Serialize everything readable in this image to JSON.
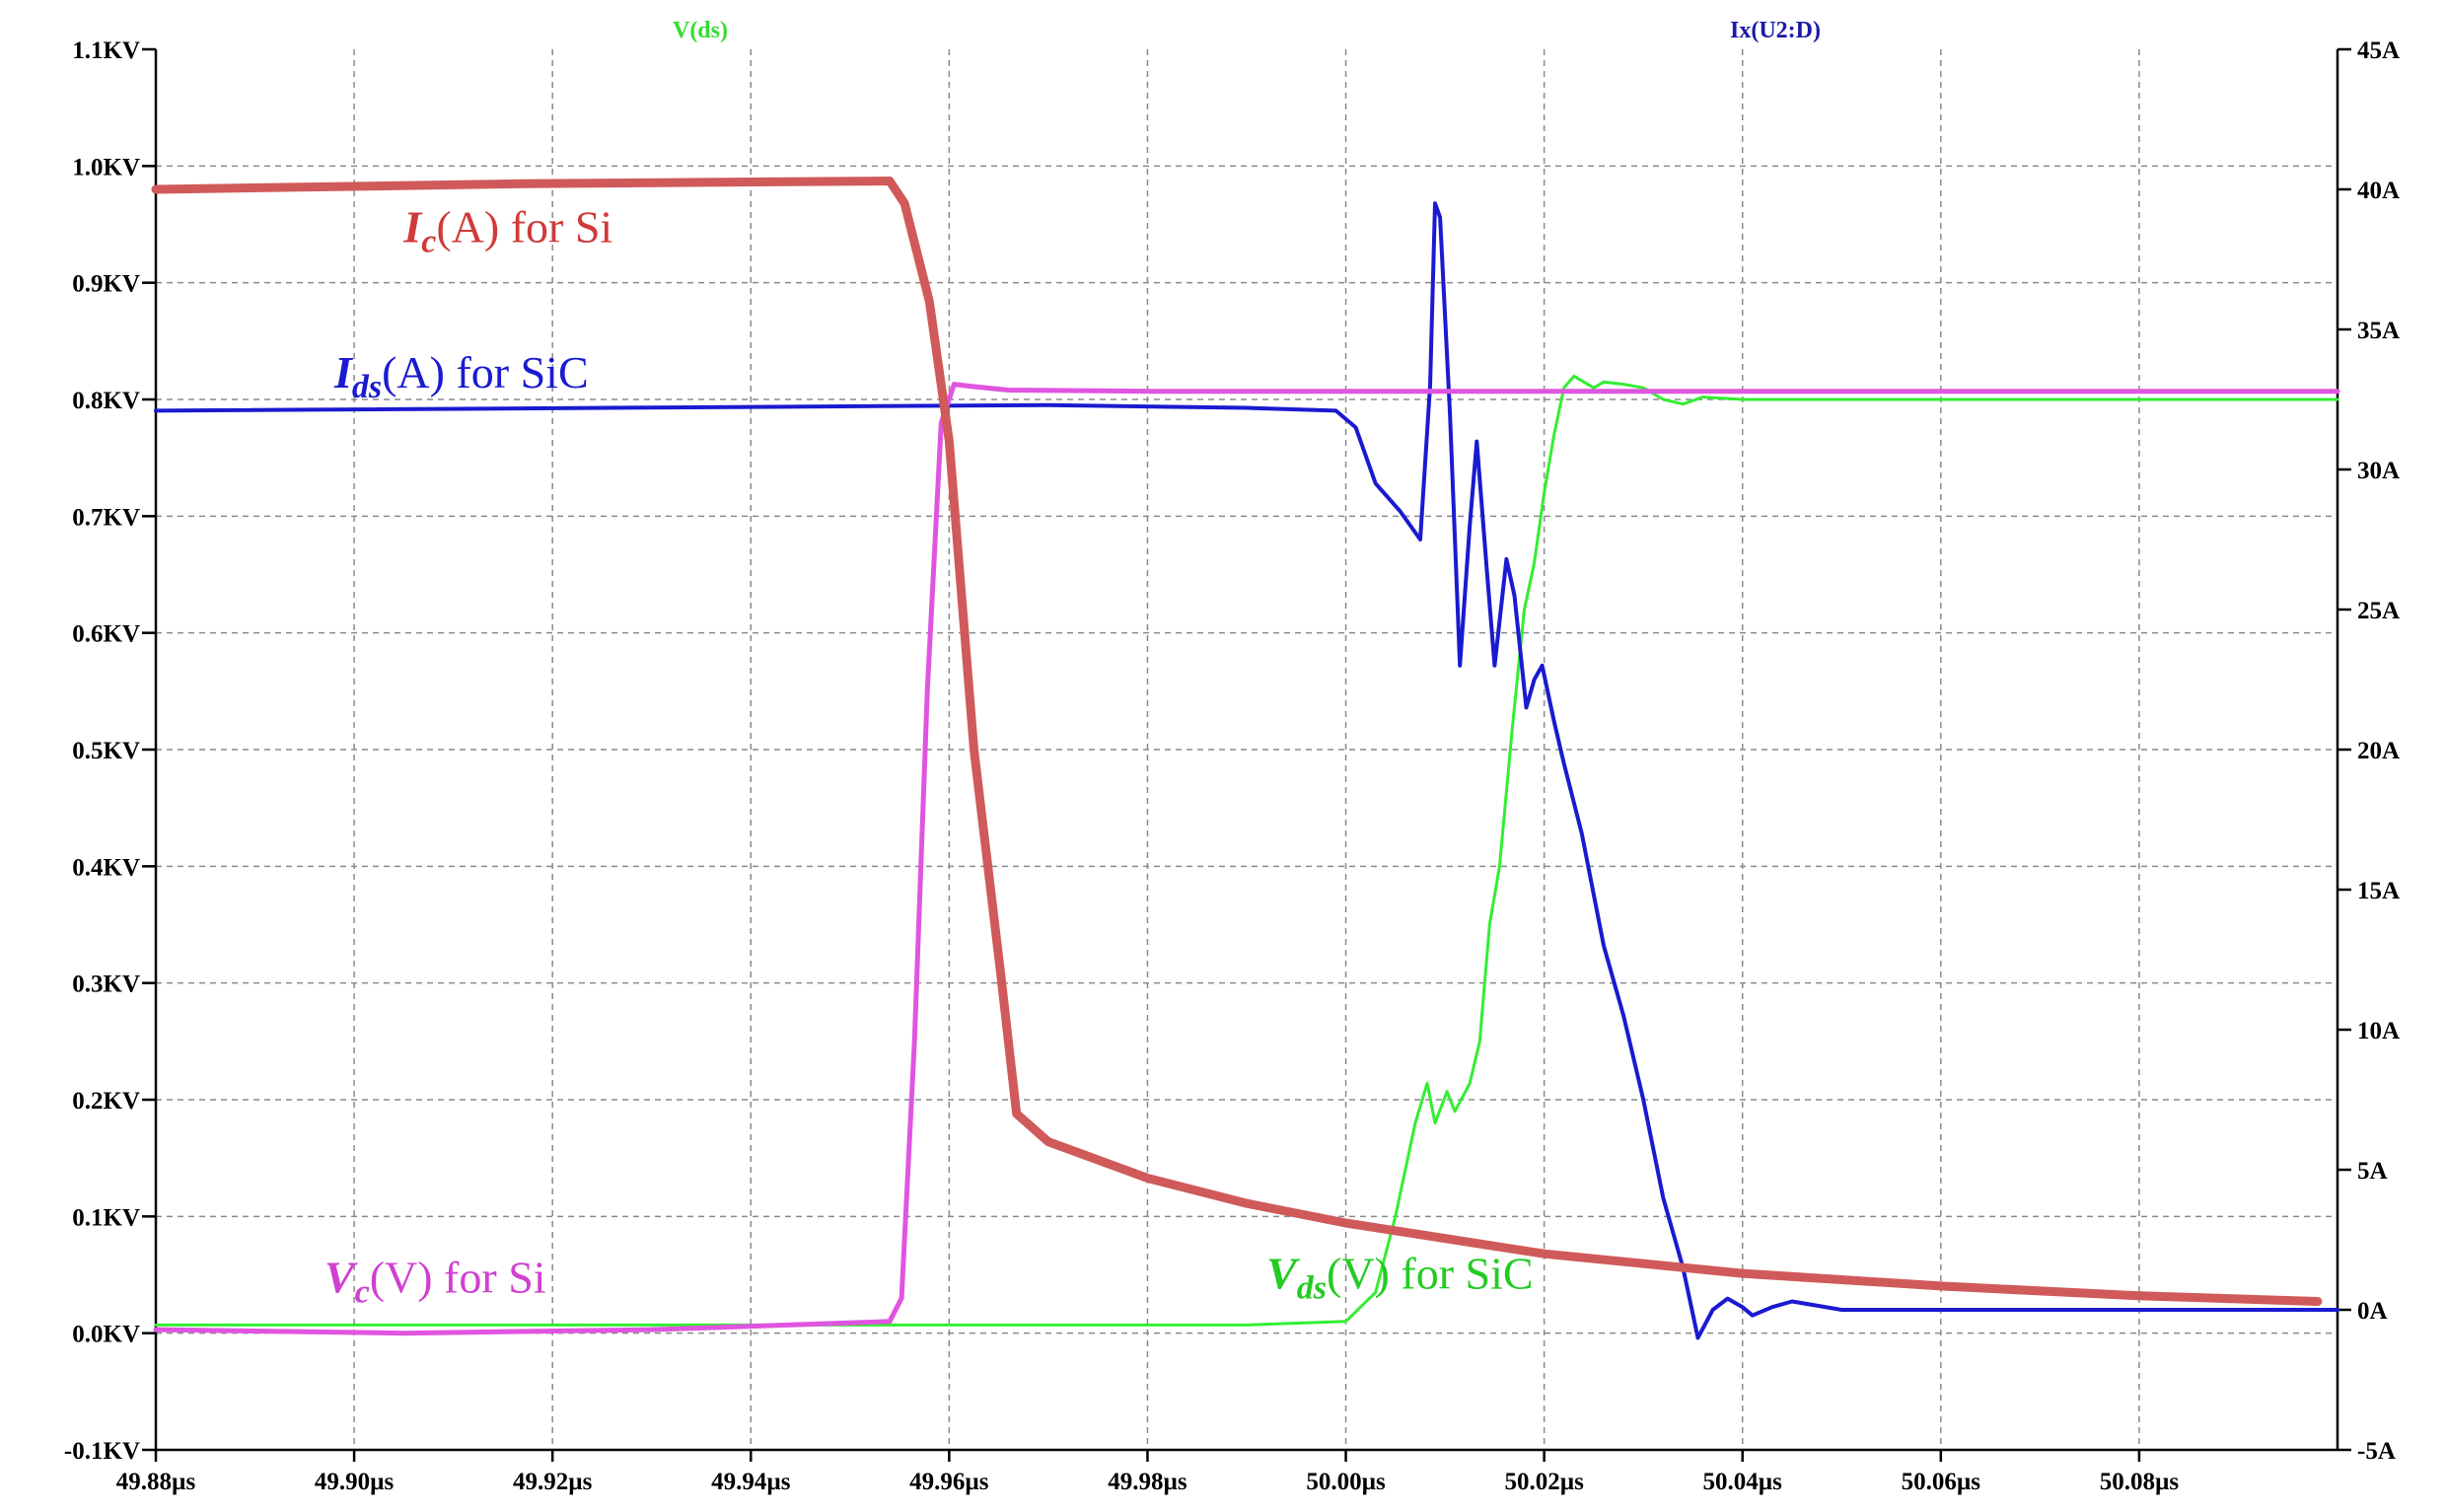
{
  "chart_data": {
    "type": "line",
    "title": "",
    "trace_headers": {
      "left": {
        "label": "V(ds)",
        "color": "#33dd33"
      },
      "right": {
        "label": "Ix(U2:D)",
        "color": "#1a1aa8"
      }
    },
    "x_axis": {
      "unit": "µs",
      "range": [
        49.88,
        50.1
      ],
      "ticks": [
        49.88,
        49.9,
        49.92,
        49.94,
        49.96,
        49.98,
        50.0,
        50.02,
        50.04,
        50.06,
        50.08
      ],
      "tick_labels": [
        "49.88µs",
        "49.90µs",
        "49.92µs",
        "49.94µs",
        "49.96µs",
        "49.98µs",
        "50.00µs",
        "50.02µs",
        "50.04µs",
        "50.06µs",
        "50.08µs"
      ]
    },
    "y_left": {
      "unit": "KV",
      "range": [
        -0.1,
        1.1
      ],
      "ticks": [
        -0.1,
        0.0,
        0.1,
        0.2,
        0.3,
        0.4,
        0.5,
        0.6,
        0.7,
        0.8,
        0.9,
        1.0,
        1.1
      ],
      "tick_labels": [
        "-0.1KV",
        "0.0KV",
        "0.1KV",
        "0.2KV",
        "0.3KV",
        "0.4KV",
        "0.5KV",
        "0.6KV",
        "0.7KV",
        "0.8KV",
        "0.9KV",
        "1.0KV",
        "1.1KV"
      ]
    },
    "y_right": {
      "unit": "A",
      "range": [
        -5,
        45
      ],
      "ticks": [
        -5,
        0,
        5,
        10,
        15,
        20,
        25,
        30,
        35,
        40,
        45
      ],
      "tick_labels": [
        "-5A",
        "0A",
        "5A",
        "10A",
        "15A",
        "20A",
        "25A",
        "30A",
        "35A",
        "40A",
        "45A"
      ]
    },
    "grid": true,
    "series": [
      {
        "id": "vds-sic",
        "axis": "left",
        "color": "#33ee33",
        "width": 3,
        "points": [
          [
            49.88,
            0.007
          ],
          [
            49.99,
            0.007
          ],
          [
            50.0,
            0.01
          ],
          [
            50.003,
            0.035
          ],
          [
            50.005,
            0.1
          ],
          [
            50.007,
            0.18
          ],
          [
            50.0082,
            0.214
          ],
          [
            50.009,
            0.18
          ],
          [
            50.0102,
            0.207
          ],
          [
            50.011,
            0.19
          ],
          [
            50.0125,
            0.214
          ],
          [
            50.0135,
            0.25
          ],
          [
            50.0145,
            0.35
          ],
          [
            50.0155,
            0.4
          ],
          [
            50.0168,
            0.52
          ],
          [
            50.018,
            0.62
          ],
          [
            50.019,
            0.66
          ],
          [
            50.02,
            0.72
          ],
          [
            50.021,
            0.77
          ],
          [
            50.022,
            0.81
          ],
          [
            50.023,
            0.82
          ],
          [
            50.024,
            0.815
          ],
          [
            50.025,
            0.81
          ],
          [
            50.026,
            0.815
          ],
          [
            50.028,
            0.813
          ],
          [
            50.03,
            0.81
          ],
          [
            50.032,
            0.8
          ],
          [
            50.034,
            0.796
          ],
          [
            50.036,
            0.802
          ],
          [
            50.04,
            0.8
          ],
          [
            50.1,
            0.8
          ]
        ]
      },
      {
        "id": "ids-sic",
        "axis": "right",
        "color": "#1a1ad0",
        "width": 4,
        "points": [
          [
            49.88,
            32.1
          ],
          [
            49.97,
            32.3
          ],
          [
            49.99,
            32.2
          ],
          [
            49.999,
            32.1
          ],
          [
            50.001,
            31.5
          ],
          [
            50.003,
            29.5
          ],
          [
            50.0055,
            28.5
          ],
          [
            50.0075,
            27.5
          ],
          [
            50.0085,
            33.0
          ],
          [
            50.009,
            39.5
          ],
          [
            50.0095,
            39.0
          ],
          [
            50.0105,
            32.0
          ],
          [
            50.0115,
            23.0
          ],
          [
            50.0125,
            28.0
          ],
          [
            50.0132,
            31.0
          ],
          [
            50.0142,
            26.5
          ],
          [
            50.015,
            23.0
          ],
          [
            50.0162,
            26.8
          ],
          [
            50.017,
            25.5
          ],
          [
            50.0182,
            21.5
          ],
          [
            50.019,
            22.5
          ],
          [
            50.0198,
            23.0
          ],
          [
            50.021,
            21.0
          ],
          [
            50.022,
            19.5
          ],
          [
            50.0238,
            17.0
          ],
          [
            50.026,
            13.0
          ],
          [
            50.028,
            10.5
          ],
          [
            50.03,
            7.5
          ],
          [
            50.032,
            4.0
          ],
          [
            50.034,
            1.5
          ],
          [
            50.0355,
            -1.0
          ],
          [
            50.037,
            0.0
          ],
          [
            50.0385,
            0.4
          ],
          [
            50.04,
            0.1
          ],
          [
            50.041,
            -0.2
          ],
          [
            50.043,
            0.1
          ],
          [
            50.045,
            0.3
          ],
          [
            50.05,
            0.0
          ],
          [
            50.1,
            0.0
          ]
        ]
      },
      {
        "id": "vc-si",
        "axis": "left",
        "color": "#e055e0",
        "width": 5,
        "points": [
          [
            49.88,
            0.003
          ],
          [
            49.905,
            0.0
          ],
          [
            49.93,
            0.003
          ],
          [
            49.954,
            0.01
          ],
          [
            49.9552,
            0.03
          ],
          [
            49.9565,
            0.25
          ],
          [
            49.9578,
            0.55
          ],
          [
            49.9592,
            0.78
          ],
          [
            49.9605,
            0.813
          ],
          [
            49.9625,
            0.811
          ],
          [
            49.966,
            0.808
          ],
          [
            49.98,
            0.807
          ],
          [
            50.1,
            0.807
          ]
        ]
      },
      {
        "id": "ic-si",
        "axis": "right",
        "color": "#d05a5a",
        "width": 9,
        "points": [
          [
            49.88,
            40.0
          ],
          [
            49.917,
            40.2
          ],
          [
            49.954,
            40.3
          ],
          [
            49.9555,
            39.5
          ],
          [
            49.958,
            36.0
          ],
          [
            49.96,
            31.0
          ],
          [
            49.9625,
            20.0
          ],
          [
            49.9652,
            12.0
          ],
          [
            49.9668,
            7.0
          ],
          [
            49.97,
            6.0
          ],
          [
            49.98,
            4.7
          ],
          [
            49.99,
            3.8
          ],
          [
            50.0,
            3.1
          ],
          [
            50.02,
            2.0
          ],
          [
            50.04,
            1.3
          ],
          [
            50.06,
            0.85
          ],
          [
            50.08,
            0.5
          ],
          [
            50.098,
            0.3
          ]
        ]
      }
    ],
    "annotations": [
      {
        "id": "ic-si-label",
        "main": "I",
        "sub": "c",
        "rest": "(A) for Si",
        "color": "#d03a3a",
        "at": [
          49.905,
          0.935
        ]
      },
      {
        "id": "ids-sic-label",
        "main": "I",
        "sub": "ds",
        "rest": "(A) for SiC",
        "color": "#1a1ad0",
        "at": [
          49.898,
          0.81
        ]
      },
      {
        "id": "vc-si-label",
        "main": "V",
        "sub": "c",
        "rest": "(V) for Si",
        "color": "#d040d0",
        "at": [
          49.897,
          0.035
        ]
      },
      {
        "id": "vds-sic-label",
        "main": "V",
        "sub": "ds",
        "rest": "(V) for SiC",
        "color": "#22cc22",
        "at": [
          49.992,
          0.038
        ]
      }
    ]
  }
}
